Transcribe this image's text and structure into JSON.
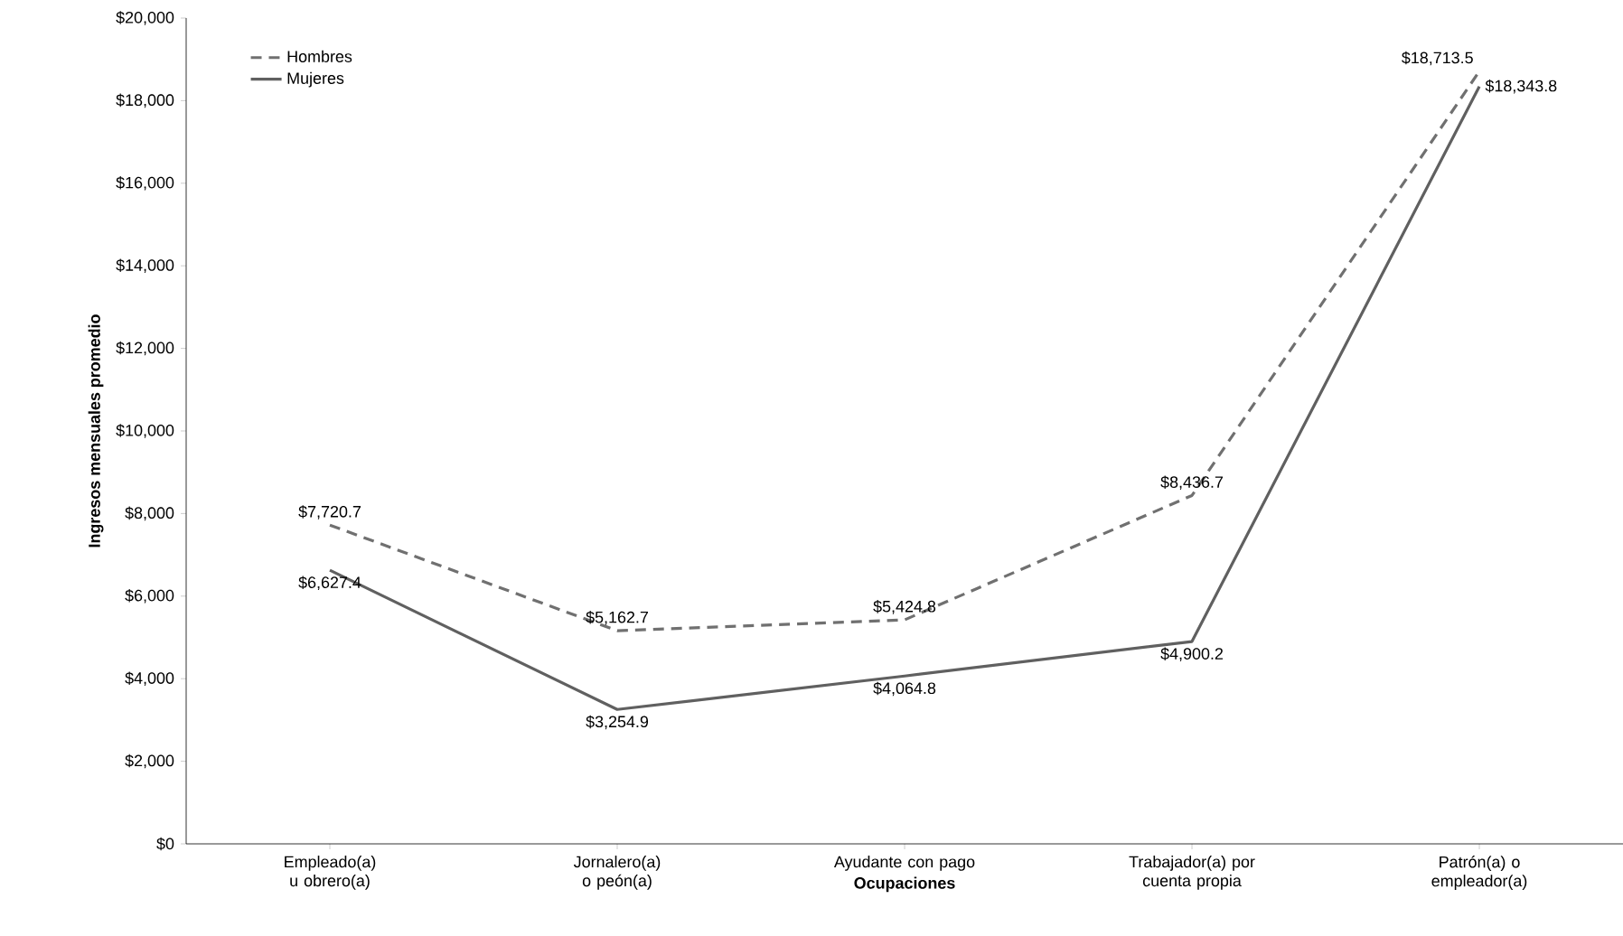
{
  "chart_data": {
    "type": "line",
    "xlabel": "Ocupaciones",
    "ylabel": "Ingresos mensuales promedio",
    "categories": [
      "Empleado(a) u obrero(a)",
      "Jornalero(a) o peón(a)",
      "Ayudante con pago",
      "Trabajador(a) por cuenta propia",
      "Patrón(a) o empleador(a)"
    ],
    "series": [
      {
        "name": "Hombres",
        "color": "#707070",
        "line_style": "dashed",
        "values": [
          7720.7,
          5162.7,
          5424.8,
          8436.7,
          18713.5
        ],
        "value_labels": [
          "$7,720.7",
          "$5,162.7",
          "$5,424.8",
          "$8,436.7",
          "$18,713.5"
        ]
      },
      {
        "name": "Mujeres",
        "color": "#606060",
        "line_style": "solid",
        "values": [
          6627.4,
          3254.9,
          4064.8,
          4900.2,
          18343.8
        ],
        "value_labels": [
          "$6,627.4",
          "$3,254.9",
          "$4,064.8",
          "$4,900.2",
          "$18,343.8"
        ]
      }
    ],
    "ylim": [
      0,
      20000
    ],
    "yticks": [
      {
        "value": 0,
        "label": "$0"
      },
      {
        "value": 2000,
        "label": "$2,000"
      },
      {
        "value": 4000,
        "label": "$4,000"
      },
      {
        "value": 6000,
        "label": "$6,000"
      },
      {
        "value": 8000,
        "label": "$8,000"
      },
      {
        "value": 10000,
        "label": "$10,000"
      },
      {
        "value": 12000,
        "label": "$12,000"
      },
      {
        "value": 14000,
        "label": "$14,000"
      },
      {
        "value": 16000,
        "label": "$16,000"
      },
      {
        "value": 18000,
        "label": "$18,000"
      },
      {
        "value": 20000,
        "label": "$20,000"
      }
    ],
    "legend": "top left",
    "grid": false,
    "marker": "none"
  }
}
